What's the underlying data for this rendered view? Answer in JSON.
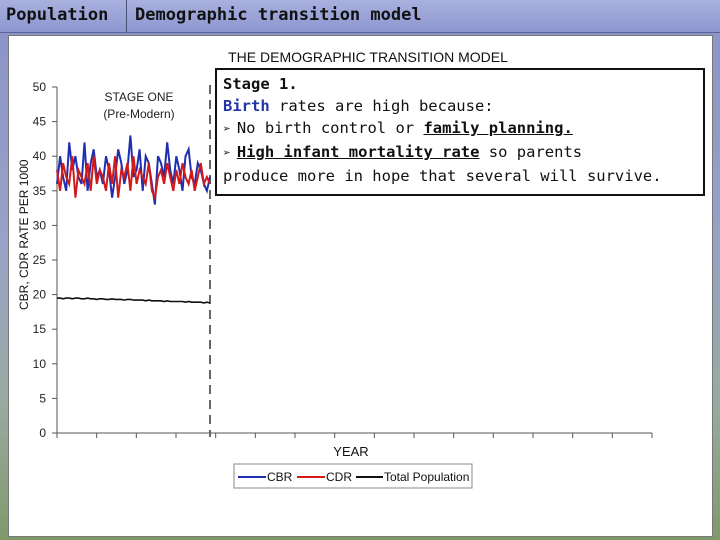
{
  "header": {
    "tab1": "Population",
    "tab2": "Demographic transition model"
  },
  "chart_data": {
    "type": "line",
    "title": "THE DEMOGRAPHIC TRANSITION MODEL",
    "xlabel": "YEAR",
    "ylabel": "CBR, CDR RATE PER 1000",
    "ylim": [
      0,
      50
    ],
    "yticks": [
      "0",
      "5",
      "10",
      "15",
      "20",
      "25",
      "30",
      "35",
      "40",
      "45",
      "50"
    ],
    "x": [
      0,
      1,
      2,
      3,
      4,
      5,
      6,
      7,
      8,
      9,
      10,
      11,
      12,
      13,
      14,
      15,
      16,
      17,
      18,
      19,
      20,
      21,
      22,
      23,
      24,
      25,
      26,
      27,
      28,
      29,
      30,
      31,
      32,
      33,
      34,
      35,
      36,
      37,
      38,
      39,
      40,
      41,
      42,
      43,
      44,
      45,
      46,
      47,
      48,
      49,
      50
    ],
    "stage_annotation": [
      "STAGE ONE",
      "(Pre-Modern)"
    ],
    "series": [
      {
        "name": "CBR",
        "color": "#1f2fb0",
        "values": [
          36,
          40,
          37,
          35,
          42,
          38,
          40,
          37,
          36,
          42,
          35,
          39,
          41,
          37,
          38,
          36,
          40,
          38,
          34,
          37,
          41,
          39,
          36,
          38,
          43,
          37,
          38,
          41,
          35,
          40,
          39,
          36,
          33,
          40,
          39,
          37,
          42,
          38,
          36,
          40,
          38,
          35,
          40,
          41,
          37,
          36,
          39,
          38,
          36,
          35,
          37
        ]
      },
      {
        "name": "CDR",
        "color": "#d21a1a",
        "values": [
          38,
          35,
          39,
          37,
          36,
          40,
          34,
          38,
          37,
          36,
          39,
          35,
          40,
          36,
          38,
          37,
          35,
          39,
          36,
          40,
          34,
          38,
          37,
          39,
          35,
          40,
          36,
          38,
          37,
          36,
          39,
          35,
          34,
          37,
          38,
          36,
          39,
          37,
          35,
          38,
          36,
          39,
          37,
          36,
          38,
          35,
          37,
          39,
          36,
          37,
          36
        ]
      },
      {
        "name": "Total Population",
        "color": "#111111",
        "values": [
          19.5,
          19.5,
          19.4,
          19.5,
          19.5,
          19.4,
          19.5,
          19.5,
          19.4,
          19.4,
          19.5,
          19.4,
          19.4,
          19.3,
          19.4,
          19.4,
          19.3,
          19.3,
          19.4,
          19.3,
          19.3,
          19.3,
          19.2,
          19.3,
          19.3,
          19.2,
          19.2,
          19.2,
          19.2,
          19.1,
          19.2,
          19.1,
          19.1,
          19.1,
          19.1,
          19.0,
          19.1,
          19.0,
          19.0,
          19.0,
          19.0,
          19.0,
          18.9,
          19.0,
          18.9,
          18.9,
          18.9,
          18.9,
          18.8,
          18.9,
          18.8
        ]
      }
    ],
    "legend": "bottom-center"
  },
  "infobox": {
    "title": "Stage 1.",
    "line1_blue": "Birth",
    "line1_rest": " rates are high because:",
    "arrow": "➢",
    "b1_text": "No birth control or ",
    "b1_underlined": "family planning.",
    "b2_underlined": "High infant mortality rate",
    "b2_rest": " so parents",
    "line4": "produce more in hope that several will survive."
  }
}
